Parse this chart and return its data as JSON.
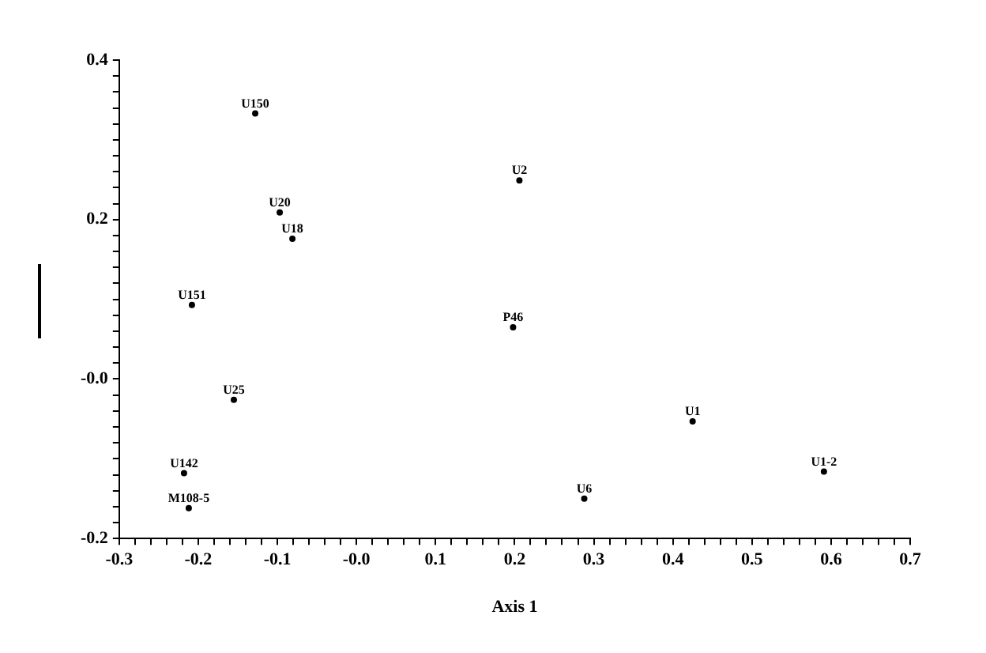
{
  "chart_data": {
    "type": "scatter",
    "xlabel": "Axis 1",
    "x": [
      -0.128,
      0.206,
      -0.097,
      -0.081,
      -0.208,
      0.198,
      -0.155,
      0.425,
      -0.218,
      0.591,
      0.288,
      -0.212
    ],
    "values": [
      0.333,
      0.249,
      0.209,
      0.176,
      0.093,
      0.065,
      -0.026,
      -0.053,
      -0.118,
      -0.116,
      -0.15,
      -0.162
    ],
    "value_labels": [
      "U150",
      "U2",
      "U20",
      "U18",
      "U151",
      "P46",
      "U25",
      "U1",
      "U142",
      "U1-2",
      "U6",
      "M108-5"
    ],
    "color": "#000000",
    "marker": "circle",
    "grid": false,
    "legend": false,
    "xlim": [
      -0.3,
      0.7
    ],
    "ylim": [
      -0.2,
      0.4
    ],
    "xticks": [
      -0.3,
      {
        "value": -0.28,
        "label": null
      },
      {
        "value": -0.26,
        "label": null
      },
      {
        "value": -0.24,
        "label": null
      },
      {
        "value": -0.22,
        "label": null
      },
      -0.2,
      {
        "value": -0.18,
        "label": null
      },
      {
        "value": -0.16,
        "label": null
      },
      {
        "value": -0.14,
        "label": null
      },
      {
        "value": -0.12,
        "label": null
      },
      -0.1,
      {
        "value": -0.08,
        "label": null
      },
      {
        "value": -0.06,
        "label": null
      },
      {
        "value": -0.04,
        "label": null
      },
      {
        "value": -0.02,
        "label": null
      },
      {
        "value": 0,
        "label": "-0.0"
      },
      {
        "value": 0.02,
        "label": null
      },
      {
        "value": 0.04,
        "label": null
      },
      {
        "value": 0.06,
        "label": null
      },
      {
        "value": 0.08,
        "label": null
      },
      0.1,
      {
        "value": 0.12,
        "label": null
      },
      {
        "value": 0.14,
        "label": null
      },
      {
        "value": 0.16,
        "label": null
      },
      {
        "value": 0.18,
        "label": null
      },
      0.2,
      {
        "value": 0.22,
        "label": null
      },
      {
        "value": 0.24,
        "label": null
      },
      {
        "value": 0.26,
        "label": null
      },
      {
        "value": 0.28,
        "label": null
      },
      0.3,
      {
        "value": 0.32,
        "label": null
      },
      {
        "value": 0.34,
        "label": null
      },
      {
        "value": 0.36,
        "label": null
      },
      {
        "value": 0.38,
        "label": null
      },
      0.4,
      {
        "value": 0.42,
        "label": null
      },
      {
        "value": 0.44,
        "label": null
      },
      {
        "value": 0.46,
        "label": null
      },
      {
        "value": 0.48,
        "label": null
      },
      0.5,
      {
        "value": 0.52,
        "label": null
      },
      {
        "value": 0.54,
        "label": null
      },
      {
        "value": 0.56,
        "label": null
      },
      {
        "value": 0.58,
        "label": null
      },
      0.6,
      {
        "value": 0.62,
        "label": null
      },
      {
        "value": 0.64,
        "label": null
      },
      {
        "value": 0.66,
        "label": null
      },
      {
        "value": 0.68,
        "label": null
      },
      0.7
    ],
    "yticks": [
      -0.2,
      {
        "value": -0.18,
        "label": null
      },
      {
        "value": -0.16,
        "label": null
      },
      {
        "value": -0.14,
        "label": null
      },
      {
        "value": -0.12,
        "label": null
      },
      {
        "value": -0.1,
        "label": null
      },
      {
        "value": -0.08,
        "label": null
      },
      {
        "value": -0.06,
        "label": null
      },
      {
        "value": -0.04,
        "label": null
      },
      {
        "value": -0.02,
        "label": null
      },
      {
        "value": 0,
        "label": "-0.0"
      },
      {
        "value": 0.02,
        "label": null
      },
      {
        "value": 0.04,
        "label": null
      },
      {
        "value": 0.06,
        "label": null
      },
      {
        "value": 0.08,
        "label": null
      },
      {
        "value": 0.1,
        "label": null
      },
      {
        "value": 0.12,
        "label": null
      },
      {
        "value": 0.14,
        "label": null
      },
      {
        "value": 0.16,
        "label": null
      },
      {
        "value": 0.18,
        "label": null
      },
      0.2,
      {
        "value": 0.22,
        "label": null
      },
      {
        "value": 0.24,
        "label": null
      },
      {
        "value": 0.26,
        "label": null
      },
      {
        "value": 0.28,
        "label": null
      },
      {
        "value": 0.3,
        "label": null
      },
      {
        "value": 0.32,
        "label": null
      },
      {
        "value": 0.34,
        "label": null
      },
      {
        "value": 0.36,
        "label": null
      },
      {
        "value": 0.38,
        "label": null
      },
      0.4
    ]
  }
}
